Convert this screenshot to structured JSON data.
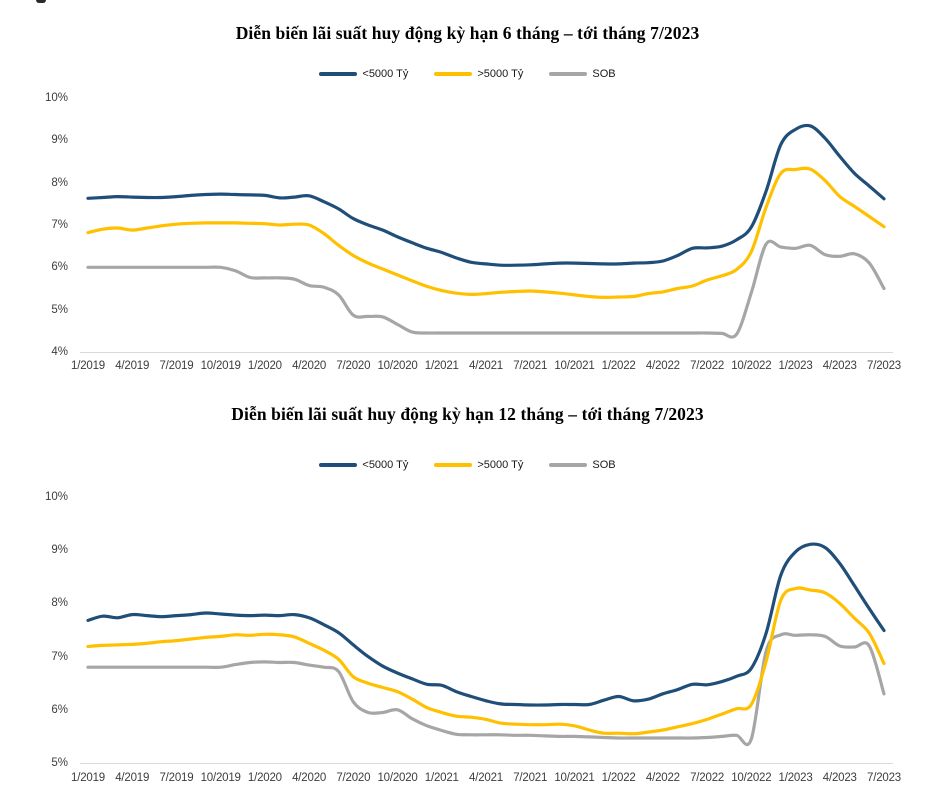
{
  "page_title": "Diễn biến lãi suất huy động",
  "colors": {
    "series_lt5000": "#1F4E79",
    "series_gt5000": "#FFC000",
    "series_sob": "#A6A6A6",
    "axis_line": "#D9D9D9"
  },
  "chart_data": [
    {
      "type": "line",
      "title": "Diễn biến lãi suất huy động kỳ hạn 6 tháng – tới tháng 7/2023",
      "xlabel": "",
      "ylabel": "",
      "y_unit": "%",
      "ylim": [
        4,
        10
      ],
      "grid": false,
      "legend_position": "top-center",
      "y_tick_labels": [
        "10%",
        "9%",
        "8%",
        "7%",
        "6%",
        "5%",
        "4%"
      ],
      "x_tick_labels": [
        "1/2019",
        "4/2019",
        "7/2019",
        "10/2019",
        "1/2020",
        "4/2020",
        "7/2020",
        "10/2020",
        "1/2021",
        "4/2021",
        "7/2021",
        "10/2021",
        "1/2022",
        "4/2022",
        "7/2022",
        "10/2022",
        "1/2023",
        "4/2023",
        "7/2023"
      ],
      "x": [
        "1/2019",
        "2/2019",
        "3/2019",
        "4/2019",
        "5/2019",
        "6/2019",
        "7/2019",
        "8/2019",
        "9/2019",
        "10/2019",
        "11/2019",
        "12/2019",
        "1/2020",
        "2/2020",
        "3/2020",
        "4/2020",
        "5/2020",
        "6/2020",
        "7/2020",
        "8/2020",
        "9/2020",
        "10/2020",
        "11/2020",
        "12/2020",
        "1/2021",
        "2/2021",
        "3/2021",
        "4/2021",
        "5/2021",
        "6/2021",
        "7/2021",
        "8/2021",
        "9/2021",
        "10/2021",
        "11/2021",
        "12/2021",
        "1/2022",
        "2/2022",
        "3/2022",
        "4/2022",
        "5/2022",
        "6/2022",
        "7/2022",
        "8/2022",
        "9/2022",
        "10/2022",
        "11/2022",
        "12/2022",
        "1/2023",
        "2/2023",
        "3/2023",
        "4/2023",
        "5/2023",
        "6/2023",
        "7/2023"
      ],
      "series": [
        {
          "name": "<5000 Tỷ",
          "key": "lt5000",
          "color": "#1F4E79",
          "values": [
            7.63,
            7.65,
            7.67,
            7.66,
            7.65,
            7.65,
            7.67,
            7.7,
            7.72,
            7.73,
            7.72,
            7.71,
            7.7,
            7.64,
            7.66,
            7.69,
            7.55,
            7.38,
            7.15,
            7.0,
            6.88,
            6.72,
            6.58,
            6.45,
            6.35,
            6.22,
            6.12,
            6.08,
            6.05,
            6.05,
            6.06,
            6.08,
            6.1,
            6.1,
            6.09,
            6.08,
            6.08,
            6.1,
            6.11,
            6.15,
            6.28,
            6.45,
            6.46,
            6.5,
            6.65,
            6.95,
            7.8,
            8.9,
            9.26,
            9.34,
            9.05,
            8.62,
            8.22,
            7.92,
            7.62
          ]
        },
        {
          "name": ">5000 Tỷ",
          "key": "gt5000",
          "color": "#FFC000",
          "values": [
            6.82,
            6.9,
            6.93,
            6.88,
            6.93,
            6.98,
            7.02,
            7.04,
            7.05,
            7.05,
            7.05,
            7.04,
            7.03,
            7.0,
            7.02,
            7.0,
            6.8,
            6.52,
            6.28,
            6.1,
            5.96,
            5.82,
            5.68,
            5.55,
            5.45,
            5.39,
            5.36,
            5.38,
            5.41,
            5.43,
            5.44,
            5.42,
            5.39,
            5.35,
            5.31,
            5.29,
            5.3,
            5.31,
            5.38,
            5.42,
            5.5,
            5.56,
            5.7,
            5.8,
            5.95,
            6.37,
            7.42,
            8.22,
            8.31,
            8.32,
            8.05,
            7.67,
            7.44,
            7.2,
            6.96
          ]
        },
        {
          "name": "SOB",
          "key": "sob",
          "color": "#A6A6A6",
          "values": [
            6.0,
            6.0,
            6.0,
            6.0,
            6.0,
            6.0,
            6.0,
            6.0,
            6.0,
            6.0,
            5.92,
            5.76,
            5.75,
            5.75,
            5.72,
            5.57,
            5.53,
            5.35,
            4.87,
            4.84,
            4.83,
            4.65,
            4.47,
            4.45,
            4.45,
            4.45,
            4.45,
            4.45,
            4.45,
            4.45,
            4.45,
            4.45,
            4.45,
            4.45,
            4.45,
            4.45,
            4.45,
            4.45,
            4.45,
            4.45,
            4.45,
            4.45,
            4.45,
            4.44,
            4.42,
            5.4,
            6.55,
            6.48,
            6.45,
            6.52,
            6.3,
            6.26,
            6.32,
            6.1,
            5.5
          ]
        }
      ]
    },
    {
      "type": "line",
      "title": "Diễn biến lãi suất huy động kỳ hạn 12 tháng – tới tháng 7/2023",
      "xlabel": "",
      "ylabel": "",
      "y_unit": "%",
      "ylim": [
        5,
        10
      ],
      "grid": false,
      "legend_position": "top-center",
      "y_tick_labels": [
        "10%",
        "9%",
        "8%",
        "7%",
        "6%",
        "5%"
      ],
      "x_tick_labels": [
        "1/2019",
        "4/2019",
        "7/2019",
        "10/2019",
        "1/2020",
        "4/2020",
        "7/2020",
        "10/2020",
        "1/2021",
        "4/2021",
        "7/2021",
        "10/2021",
        "1/2022",
        "4/2022",
        "7/2022",
        "10/2022",
        "1/2023",
        "4/2023",
        "7/2023"
      ],
      "x": [
        "1/2019",
        "2/2019",
        "3/2019",
        "4/2019",
        "5/2019",
        "6/2019",
        "7/2019",
        "8/2019",
        "9/2019",
        "10/2019",
        "11/2019",
        "12/2019",
        "1/2020",
        "2/2020",
        "3/2020",
        "4/2020",
        "5/2020",
        "6/2020",
        "7/2020",
        "8/2020",
        "9/2020",
        "10/2020",
        "11/2020",
        "12/2020",
        "1/2021",
        "2/2021",
        "3/2021",
        "4/2021",
        "5/2021",
        "6/2021",
        "7/2021",
        "8/2021",
        "9/2021",
        "10/2021",
        "11/2021",
        "12/2021",
        "1/2022",
        "2/2022",
        "3/2022",
        "4/2022",
        "5/2022",
        "6/2022",
        "7/2022",
        "8/2022",
        "9/2022",
        "10/2022",
        "11/2022",
        "12/2022",
        "1/2023",
        "2/2023",
        "3/2023",
        "4/2023",
        "5/2023",
        "6/2023",
        "7/2023"
      ],
      "series": [
        {
          "name": "<5000 Tỷ",
          "key": "lt5000",
          "color": "#1F4E79",
          "values": [
            7.68,
            7.76,
            7.73,
            7.79,
            7.77,
            7.75,
            7.77,
            7.79,
            7.82,
            7.8,
            7.78,
            7.77,
            7.78,
            7.77,
            7.79,
            7.73,
            7.6,
            7.45,
            7.22,
            7.0,
            6.82,
            6.69,
            6.58,
            6.48,
            6.46,
            6.34,
            6.25,
            6.17,
            6.11,
            6.1,
            6.09,
            6.09,
            6.1,
            6.1,
            6.1,
            6.18,
            6.25,
            6.17,
            6.2,
            6.3,
            6.38,
            6.48,
            6.47,
            6.53,
            6.63,
            6.78,
            7.44,
            8.53,
            8.97,
            9.11,
            9.05,
            8.75,
            8.33,
            7.9,
            7.49
          ]
        },
        {
          "name": ">5000 Tỷ",
          "key": "gt5000",
          "color": "#FFC000",
          "values": [
            7.19,
            7.21,
            7.22,
            7.23,
            7.25,
            7.28,
            7.3,
            7.33,
            7.36,
            7.38,
            7.41,
            7.4,
            7.42,
            7.41,
            7.37,
            7.25,
            7.12,
            6.95,
            6.62,
            6.5,
            6.42,
            6.34,
            6.2,
            6.04,
            5.95,
            5.88,
            5.86,
            5.82,
            5.75,
            5.73,
            5.72,
            5.72,
            5.73,
            5.7,
            5.62,
            5.56,
            5.56,
            5.55,
            5.58,
            5.62,
            5.68,
            5.74,
            5.82,
            5.92,
            6.02,
            6.1,
            6.91,
            8.06,
            8.28,
            8.25,
            8.2,
            8.0,
            7.72,
            7.44,
            6.87
          ]
        },
        {
          "name": "SOB",
          "key": "sob",
          "color": "#A6A6A6",
          "values": [
            6.8,
            6.8,
            6.8,
            6.8,
            6.8,
            6.8,
            6.8,
            6.8,
            6.8,
            6.8,
            6.85,
            6.89,
            6.9,
            6.89,
            6.89,
            6.84,
            6.8,
            6.72,
            6.15,
            5.95,
            5.95,
            6.0,
            5.83,
            5.7,
            5.61,
            5.54,
            5.53,
            5.53,
            5.53,
            5.52,
            5.52,
            5.51,
            5.5,
            5.5,
            5.49,
            5.48,
            5.47,
            5.47,
            5.47,
            5.47,
            5.47,
            5.47,
            5.48,
            5.5,
            5.52,
            5.45,
            7.1,
            7.41,
            7.4,
            7.41,
            7.38,
            7.2,
            7.18,
            7.2,
            6.3
          ]
        }
      ]
    }
  ]
}
